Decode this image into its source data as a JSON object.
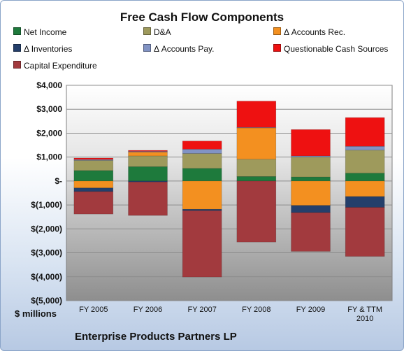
{
  "chart_data": {
    "type": "bar",
    "stacked": true,
    "title": "Free Cash Flow Components",
    "xlabel": "Enterprise Products Partners LP",
    "ylabel": "$ millions",
    "ylim": [
      -5000,
      4000
    ],
    "y_ticks": [
      "$4,000",
      "$3,000",
      "$2,000",
      "$1,000",
      "$-",
      "$(1,000)",
      "$(2,000)",
      "$(3,000)",
      "$(4,000)",
      "$(5,000)"
    ],
    "categories": [
      "FY 2005",
      "FY 2006",
      "FY 2007",
      "FY 2008",
      "FY 2009",
      "FY & TTM\n2010"
    ],
    "legend_position": "top",
    "grid": true,
    "series": [
      {
        "name": "Net Income",
        "color": "#1e7a3c",
        "values": [
          440,
          600,
          530,
          190,
          170,
          330
        ]
      },
      {
        "name": "D&A",
        "color": "#9e9a5c",
        "values": [
          420,
          450,
          620,
          720,
          830,
          960
        ]
      },
      {
        "name": "Δ Accounts Rec.",
        "color": "#f39020",
        "values": [
          -290,
          160,
          -1180,
          1310,
          -1020,
          -650
        ]
      },
      {
        "name": "Δ Inventories",
        "color": "#243f6b",
        "values": [
          -150,
          -40,
          -60,
          0,
          -300,
          -450
        ]
      },
      {
        "name": "Δ Accounts Pay.",
        "color": "#8193c4",
        "values": [
          40,
          30,
          180,
          20,
          50,
          160
        ]
      },
      {
        "name": "Questionable Cash Sources",
        "color": "#ee1111",
        "values": [
          60,
          40,
          340,
          1100,
          1100,
          1200
        ]
      },
      {
        "name": "Capital Expenditure",
        "color": "#a23a3e",
        "values": [
          -940,
          -1400,
          -2770,
          -2550,
          -1620,
          -2050
        ]
      }
    ]
  }
}
